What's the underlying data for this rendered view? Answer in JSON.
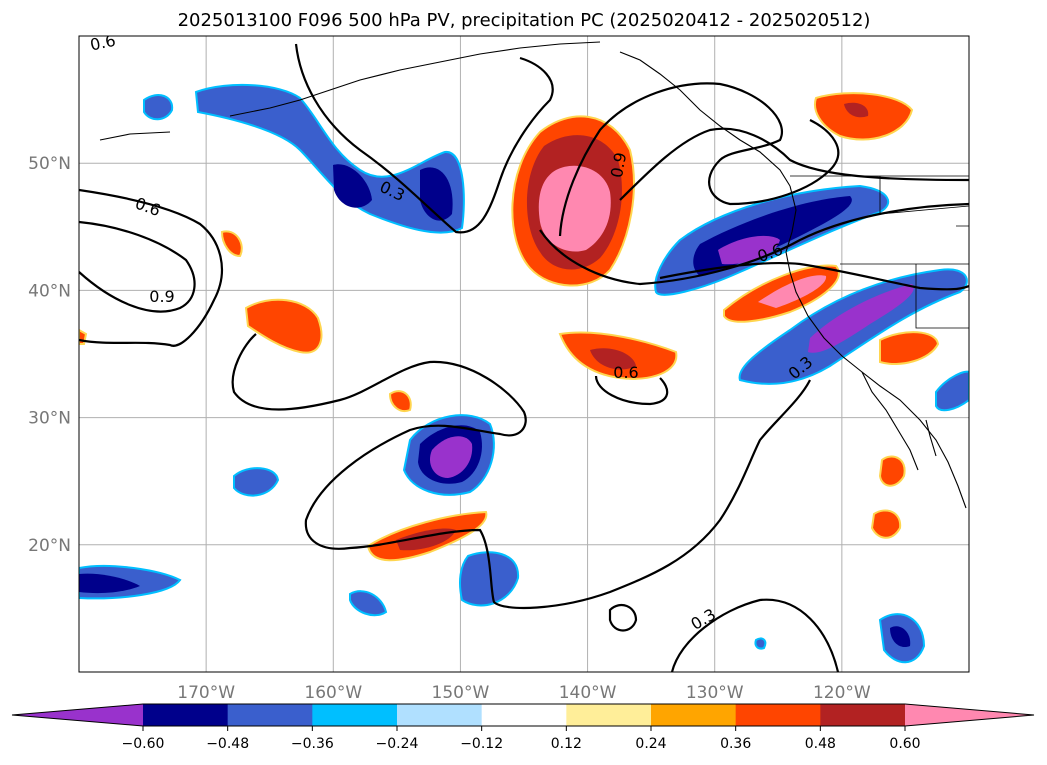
{
  "chart_data": {
    "type": "heatmap",
    "title": "2025013100 F096 500 hPa PV, precipitation PC (2025020412 - 2025020512)",
    "x_ticks": [
      "170°W",
      "160°W",
      "150°W",
      "140°W",
      "130°W",
      "120°W"
    ],
    "y_ticks": [
      "50°N",
      "40°N",
      "30°N",
      "20°N"
    ],
    "x_tick_lon": [
      -170,
      -160,
      -150,
      -140,
      -130,
      -120
    ],
    "y_tick_lat": [
      50,
      40,
      30,
      20
    ],
    "xlim": [
      -180,
      -110
    ],
    "ylim": [
      10,
      60
    ],
    "grid": true,
    "colorbar": {
      "orientation": "horizontal",
      "extend": "both",
      "levels": [
        -0.6,
        -0.48,
        -0.36,
        -0.24,
        -0.12,
        0.12,
        0.24,
        0.36,
        0.48,
        0.6
      ],
      "tick_labels": [
        "−0.60",
        "−0.48",
        "−0.36",
        "−0.24",
        "−0.12",
        "0.12",
        "0.24",
        "0.36",
        "0.48",
        "0.60"
      ],
      "colors": [
        "#9932cc",
        "#00008b",
        "#3a5fcd",
        "#00bfff",
        "#b0e0ff",
        "#ffffff",
        "#ffee99",
        "#ffa500",
        "#ff4500",
        "#b22222",
        "#ff88b0"
      ]
    },
    "contour_labels": [
      "0.6",
      "0.3",
      "0.6",
      "0.9",
      "0.9",
      "0.6",
      "0.6",
      "0.3",
      "0.3"
    ],
    "contour_levels": [
      0.3,
      0.6,
      0.9
    ]
  }
}
